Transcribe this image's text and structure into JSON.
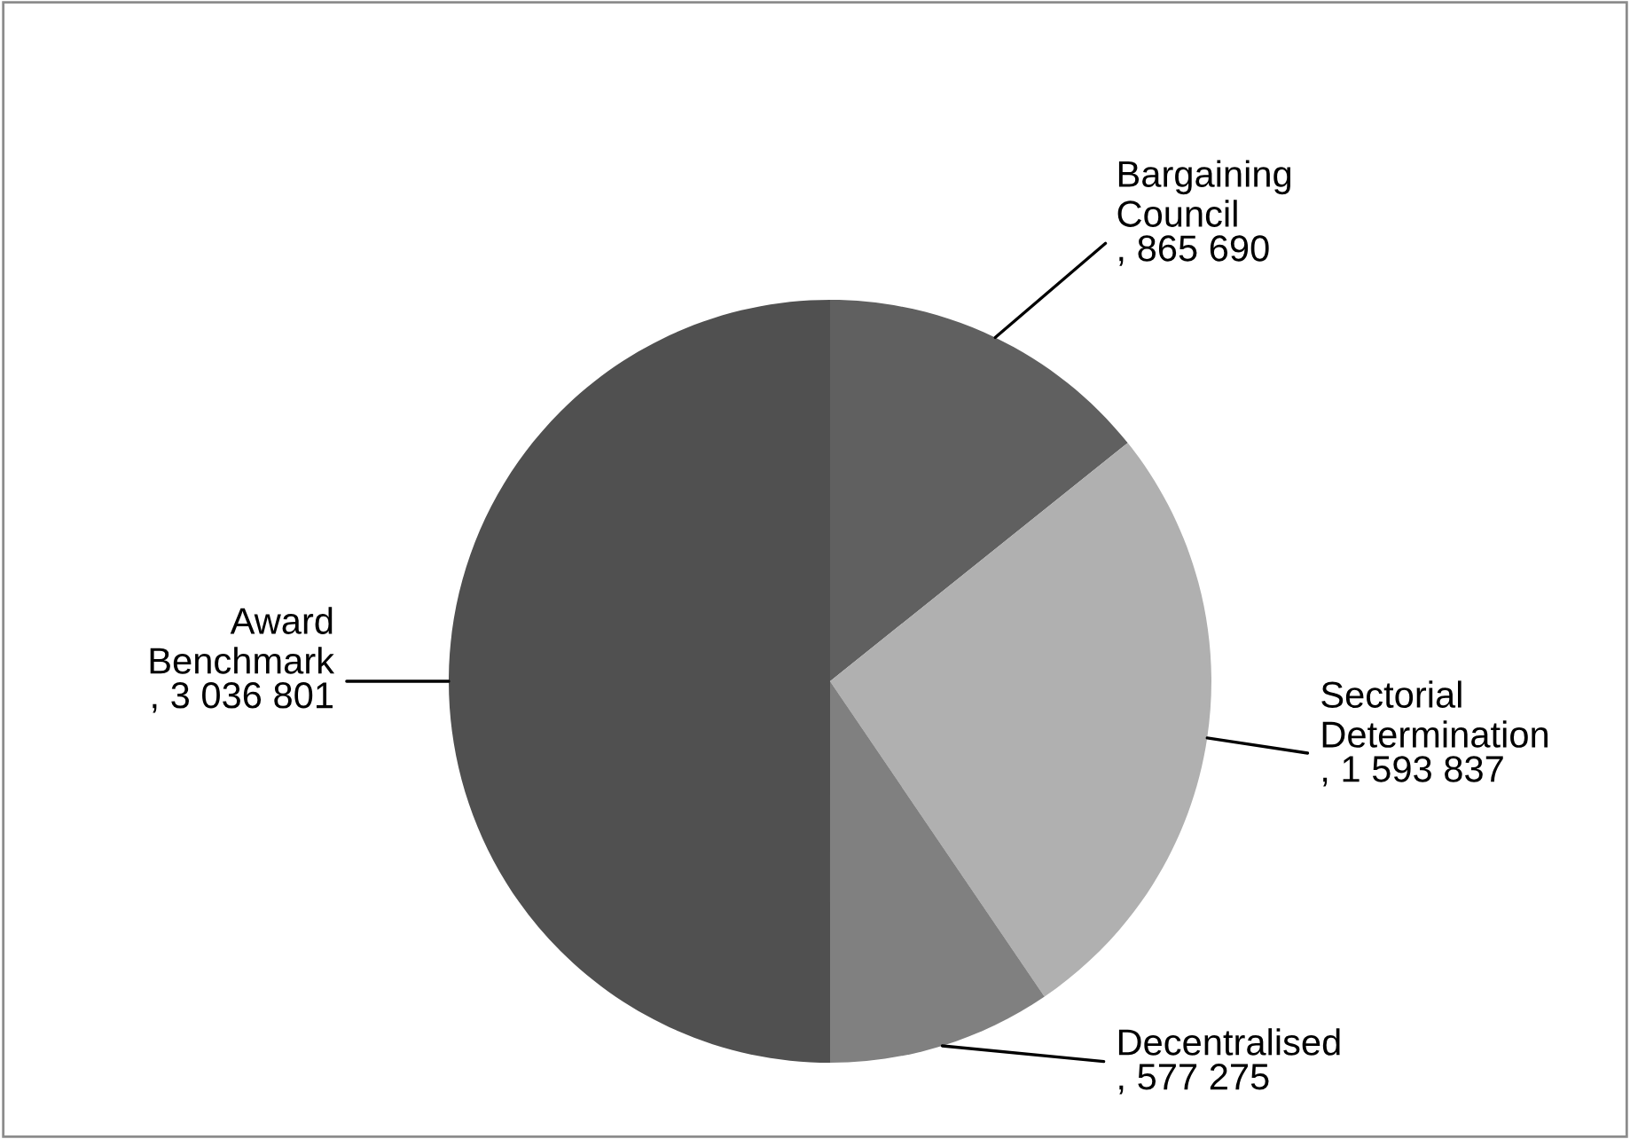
{
  "chart_data": {
    "type": "pie",
    "categories": [
      "Bargaining Council",
      "Sectorial Determination",
      "Decentralised",
      "Award Benchmark"
    ],
    "values": [
      865690,
      1593837,
      577275,
      3036801
    ],
    "value_labels": [
      ", 865 690",
      ", 1 593 837",
      ", 577 275",
      ", 3 036 801"
    ],
    "colors": [
      "#606060",
      "#b0b0b0",
      "#808080",
      "#505050"
    ],
    "legend": false
  }
}
